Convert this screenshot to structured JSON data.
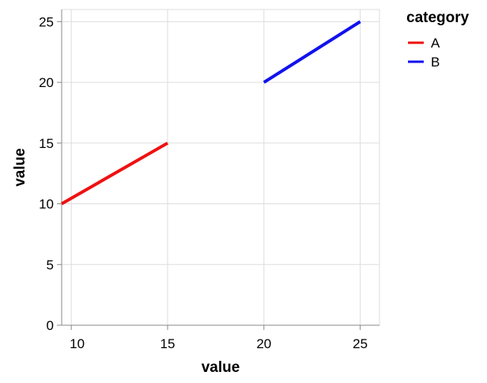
{
  "chart_data": {
    "type": "line",
    "xlabel": "value",
    "ylabel": "value",
    "xlim": [
      9.5,
      26
    ],
    "ylim": [
      0,
      26
    ],
    "x_ticks": [
      10,
      15,
      20,
      25
    ],
    "y_ticks": [
      0,
      5,
      10,
      15,
      20,
      25
    ],
    "grid": true,
    "legend": {
      "title": "category",
      "placement": "right"
    },
    "series": [
      {
        "name": "A",
        "color": "#ee1111",
        "points": [
          [
            9.5,
            10
          ],
          [
            15,
            15
          ]
        ]
      },
      {
        "name": "B",
        "color": "#1111ee",
        "points": [
          [
            20,
            20
          ],
          [
            25,
            25
          ]
        ]
      }
    ]
  }
}
